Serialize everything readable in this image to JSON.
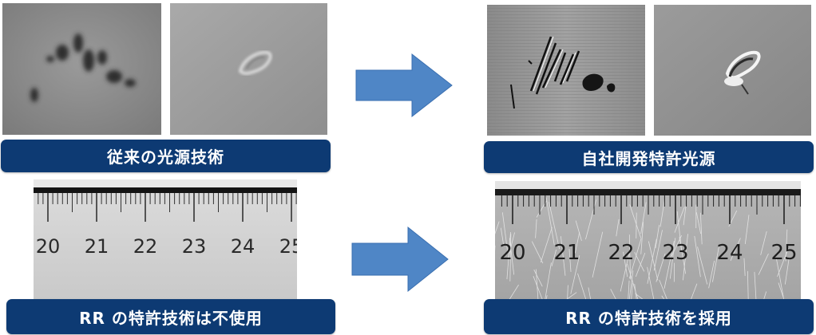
{
  "labels": {
    "conventional_light": "従来の光源技術",
    "proprietary_light": "自社開発特許光源",
    "rr_not_used": "RR の特許技術は不使用",
    "rr_adopted": "RR の特許技術を採用"
  },
  "ruler": {
    "numbers": [
      "20",
      "21",
      "22",
      "23",
      "24",
      "25"
    ]
  },
  "colors": {
    "label_bg": "#0d3a73",
    "arrow": "#4f86c6"
  },
  "icons": {
    "arrow": "right-arrow-icon"
  }
}
